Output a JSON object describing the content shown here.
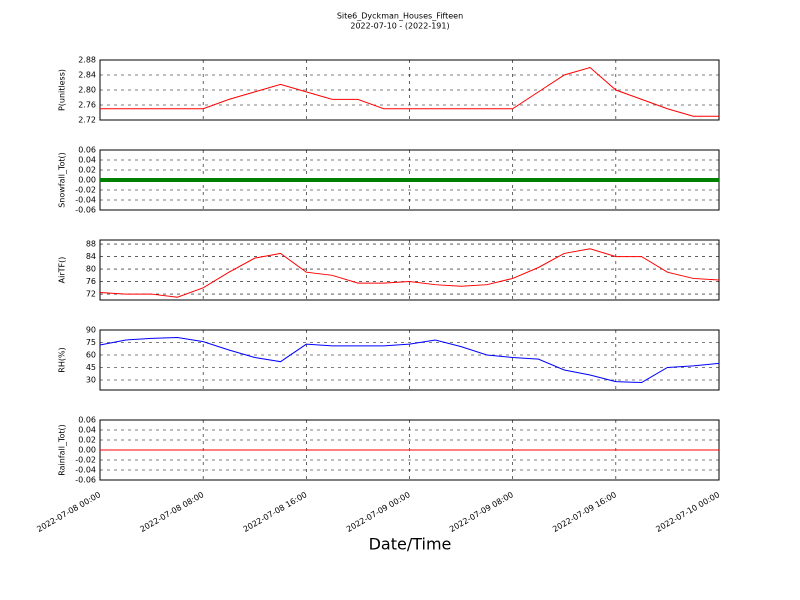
{
  "chart_data": [
    {
      "type": "line",
      "title": "Site6_Dyckman_Houses_Fifteen",
      "subtitle": "2022-07-10 - (2022-191)",
      "ylabel": "P(unitless)",
      "color": "#ff0000",
      "grid": true,
      "xlim": [
        "2022-07-08 00:00",
        "2022-07-10 00:00"
      ],
      "xticks": [
        "2022-07-08 00:00",
        "2022-07-08 08:00",
        "2022-07-08 16:00",
        "2022-07-09 00:00",
        "2022-07-09 08:00",
        "2022-07-09 16:00",
        "2022-07-10 00:00"
      ],
      "x": [
        "2022-07-08 00:00",
        "2022-07-08 02:00",
        "2022-07-08 04:00",
        "2022-07-08 06:00",
        "2022-07-08 08:00",
        "2022-07-08 10:00",
        "2022-07-08 12:00",
        "2022-07-08 14:00",
        "2022-07-08 16:00",
        "2022-07-08 18:00",
        "2022-07-08 20:00",
        "2022-07-08 22:00",
        "2022-07-09 00:00",
        "2022-07-09 02:00",
        "2022-07-09 04:00",
        "2022-07-09 06:00",
        "2022-07-09 08:00",
        "2022-07-09 10:00",
        "2022-07-09 12:00",
        "2022-07-09 14:00",
        "2022-07-09 16:00",
        "2022-07-09 18:00",
        "2022-07-09 20:00",
        "2022-07-09 22:00",
        "2022-07-10 00:00"
      ],
      "values": [
        2.75,
        2.75,
        2.75,
        2.75,
        2.75,
        2.775,
        2.795,
        2.815,
        2.795,
        2.775,
        2.775,
        2.75,
        2.75,
        2.75,
        2.75,
        2.75,
        2.75,
        2.795,
        2.84,
        2.86,
        2.8,
        2.775,
        2.75,
        2.73,
        2.73
      ],
      "ylim": [
        2.72,
        2.88
      ],
      "yticks": [
        2.72,
        2.76,
        {
          "value": 2.8,
          "label": "2.80"
        },
        2.84,
        2.88
      ]
    },
    {
      "type": "line",
      "ylabel": "Snowfall_Tot()",
      "color": "#008000",
      "grid": true,
      "xlim": [
        "2022-07-08 00:00",
        "2022-07-10 00:00"
      ],
      "xticks": [
        "2022-07-08 00:00",
        "2022-07-08 08:00",
        "2022-07-08 16:00",
        "2022-07-09 00:00",
        "2022-07-09 08:00",
        "2022-07-09 16:00",
        "2022-07-10 00:00"
      ],
      "x": [
        "2022-07-08 00:00",
        "2022-07-08 02:00",
        "2022-07-08 04:00",
        "2022-07-08 06:00",
        "2022-07-08 08:00",
        "2022-07-08 10:00",
        "2022-07-08 12:00",
        "2022-07-08 14:00",
        "2022-07-08 16:00",
        "2022-07-08 18:00",
        "2022-07-08 20:00",
        "2022-07-08 22:00",
        "2022-07-09 00:00",
        "2022-07-09 02:00",
        "2022-07-09 04:00",
        "2022-07-09 06:00",
        "2022-07-09 08:00",
        "2022-07-09 10:00",
        "2022-07-09 12:00",
        "2022-07-09 14:00",
        "2022-07-09 16:00",
        "2022-07-09 18:00",
        "2022-07-09 20:00",
        "2022-07-09 22:00",
        "2022-07-10 00:00"
      ],
      "values": [
        0,
        0,
        0,
        0,
        0,
        0,
        0,
        0,
        0,
        0,
        0,
        0,
        0,
        0,
        0,
        0,
        0,
        0,
        0,
        0,
        0,
        0,
        0,
        0,
        0
      ],
      "ylim": [
        -0.06,
        0.06
      ],
      "yticks": [
        -0.06,
        -0.04,
        -0.02,
        {
          "value": 0,
          "label": "0.00"
        },
        0.02,
        0.04,
        0.06
      ]
    },
    {
      "type": "line",
      "ylabel": "AirTF()",
      "color": "#ff0000",
      "grid": true,
      "xlim": [
        "2022-07-08 00:00",
        "2022-07-10 00:00"
      ],
      "xticks": [
        "2022-07-08 00:00",
        "2022-07-08 08:00",
        "2022-07-08 16:00",
        "2022-07-09 00:00",
        "2022-07-09 08:00",
        "2022-07-09 16:00",
        "2022-07-10 00:00"
      ],
      "x": [
        "2022-07-08 00:00",
        "2022-07-08 02:00",
        "2022-07-08 04:00",
        "2022-07-08 06:00",
        "2022-07-08 08:00",
        "2022-07-08 10:00",
        "2022-07-08 12:00",
        "2022-07-08 14:00",
        "2022-07-08 16:00",
        "2022-07-08 18:00",
        "2022-07-08 20:00",
        "2022-07-08 22:00",
        "2022-07-09 00:00",
        "2022-07-09 02:00",
        "2022-07-09 04:00",
        "2022-07-09 06:00",
        "2022-07-09 08:00",
        "2022-07-09 10:00",
        "2022-07-09 12:00",
        "2022-07-09 14:00",
        "2022-07-09 16:00",
        "2022-07-09 18:00",
        "2022-07-09 20:00",
        "2022-07-09 22:00",
        "2022-07-10 00:00"
      ],
      "values": [
        72.5,
        72,
        72,
        71,
        74,
        79,
        83.5,
        85,
        79,
        78,
        75.5,
        75.5,
        76,
        75,
        74.5,
        75,
        77,
        80.5,
        85,
        86.5,
        84,
        84,
        79,
        77,
        76.5
      ],
      "ylim": [
        70.1,
        89.3
      ],
      "yticks": [
        72,
        76,
        80,
        84,
        88
      ]
    },
    {
      "type": "line",
      "ylabel": "RH(%)",
      "color": "#0000ff",
      "grid": true,
      "xlim": [
        "2022-07-08 00:00",
        "2022-07-10 00:00"
      ],
      "xticks": [
        "2022-07-08 00:00",
        "2022-07-08 08:00",
        "2022-07-08 16:00",
        "2022-07-09 00:00",
        "2022-07-09 08:00",
        "2022-07-09 16:00",
        "2022-07-10 00:00"
      ],
      "x": [
        "2022-07-08 00:00",
        "2022-07-08 02:00",
        "2022-07-08 04:00",
        "2022-07-08 06:00",
        "2022-07-08 08:00",
        "2022-07-08 10:00",
        "2022-07-08 12:00",
        "2022-07-08 14:00",
        "2022-07-08 16:00",
        "2022-07-08 18:00",
        "2022-07-08 20:00",
        "2022-07-08 22:00",
        "2022-07-09 00:00",
        "2022-07-09 02:00",
        "2022-07-09 04:00",
        "2022-07-09 06:00",
        "2022-07-09 08:00",
        "2022-07-09 10:00",
        "2022-07-09 12:00",
        "2022-07-09 14:00",
        "2022-07-09 16:00",
        "2022-07-09 18:00",
        "2022-07-09 20:00",
        "2022-07-09 22:00",
        "2022-07-10 00:00"
      ],
      "values": [
        72,
        78,
        80,
        81,
        76,
        66,
        57,
        52,
        73,
        71,
        71,
        71,
        73,
        78,
        70,
        60,
        57,
        55,
        42,
        36,
        28,
        27,
        45,
        47,
        50
      ],
      "ylim": [
        18,
        90
      ],
      "yticks": [
        30,
        45,
        60,
        75,
        90
      ]
    },
    {
      "type": "line",
      "ylabel": "Rainfall_Tot()",
      "xlabel": "Date/Time",
      "color": "#ff0000",
      "grid": true,
      "xlim": [
        "2022-07-08 00:00",
        "2022-07-10 00:00"
      ],
      "xticks": [
        "2022-07-08 00:00",
        "2022-07-08 08:00",
        "2022-07-08 16:00",
        "2022-07-09 00:00",
        "2022-07-09 08:00",
        "2022-07-09 16:00",
        "2022-07-10 00:00"
      ],
      "x": [
        "2022-07-08 00:00",
        "2022-07-08 02:00",
        "2022-07-08 04:00",
        "2022-07-08 06:00",
        "2022-07-08 08:00",
        "2022-07-08 10:00",
        "2022-07-08 12:00",
        "2022-07-08 14:00",
        "2022-07-08 16:00",
        "2022-07-08 18:00",
        "2022-07-08 20:00",
        "2022-07-08 22:00",
        "2022-07-09 00:00",
        "2022-07-09 02:00",
        "2022-07-09 04:00",
        "2022-07-09 06:00",
        "2022-07-09 08:00",
        "2022-07-09 10:00",
        "2022-07-09 12:00",
        "2022-07-09 14:00",
        "2022-07-09 16:00",
        "2022-07-09 18:00",
        "2022-07-09 20:00",
        "2022-07-09 22:00",
        "2022-07-10 00:00"
      ],
      "values": [
        0,
        0,
        0,
        0,
        0,
        0,
        0,
        0,
        0,
        0,
        0,
        0,
        0,
        0,
        0,
        0,
        0,
        0,
        0,
        0,
        0,
        0,
        0,
        0,
        0
      ],
      "ylim": [
        -0.06,
        0.06
      ],
      "yticks": [
        -0.06,
        -0.04,
        -0.02,
        {
          "value": 0,
          "label": "0.00"
        },
        0.02,
        0.04,
        0.06
      ]
    }
  ]
}
